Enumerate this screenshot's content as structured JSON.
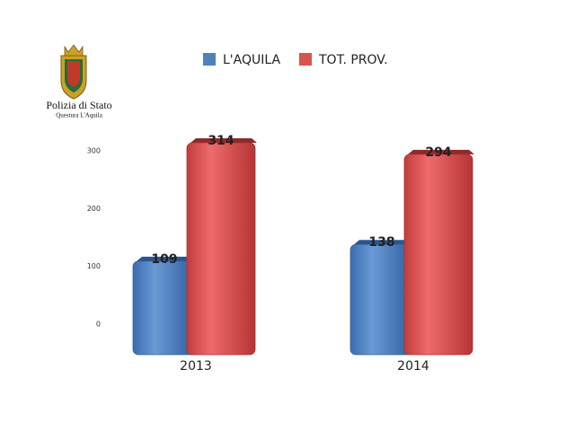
{
  "logo": {
    "title": "Polizia di Stato",
    "subtitle": "Questura L'Aquila"
  },
  "chart_data": {
    "type": "bar",
    "categories": [
      "2013",
      "2014"
    ],
    "series": [
      {
        "name": "L'AQUILA",
        "color": "#4f81bd",
        "values": [
          109,
          138
        ]
      },
      {
        "name": "TOT. PROV.",
        "color": "#d9534f",
        "values": [
          314,
          294
        ]
      }
    ],
    "ylim": [
      0,
      300
    ],
    "yticks": [
      0,
      100,
      200,
      300
    ],
    "grid": false,
    "legend": "top"
  }
}
